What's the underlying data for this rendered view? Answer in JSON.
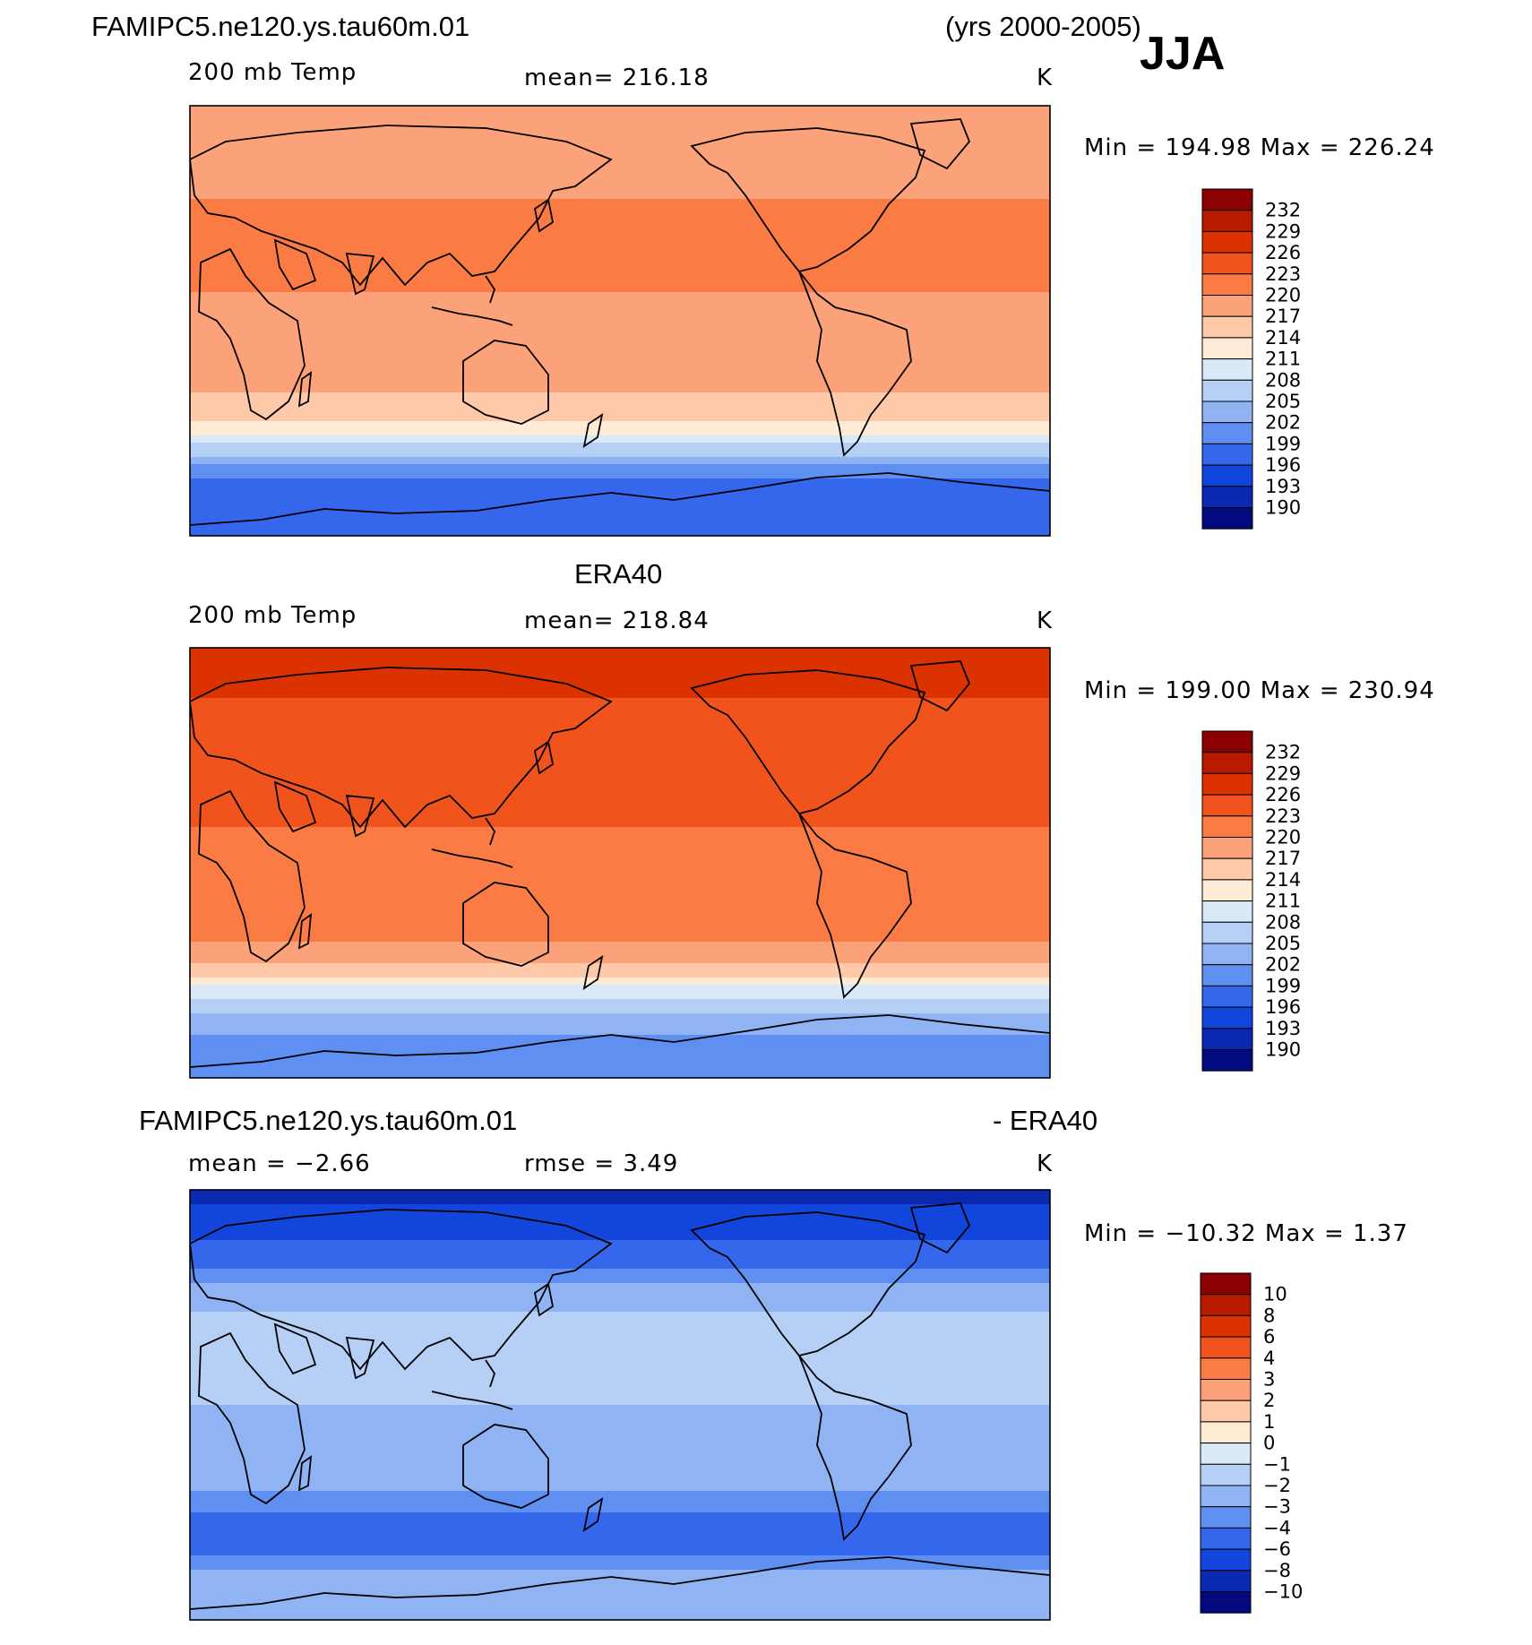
{
  "header": {
    "case_name": "FAMIPC5.ne120.ys.tau60m.01",
    "years": "(yrs 2000-2005)",
    "season": "JJA"
  },
  "panels": [
    {
      "id": "model",
      "title": "",
      "variable": "200 mb Temp",
      "stat_text": "mean=  216.18",
      "units": "K",
      "minmax": "Min  =  194.98  Max  =  226.24"
    },
    {
      "id": "obs",
      "title": "ERA40",
      "variable": "200 mb Temp",
      "stat_text": "mean=  218.84",
      "units": "K",
      "minmax": "Min  =  199.00  Max  =  230.94"
    },
    {
      "id": "diff",
      "title_left": "FAMIPC5.ne120.ys.tau60m.01",
      "title_right": "- ERA40",
      "variable": "mean  =    −2.66",
      "stat_text": "rmse  =      3.49",
      "units": "K",
      "minmax": "Min  =  −10.32  Max  =      1.37"
    }
  ],
  "chart_data": [
    {
      "type": "heatmap",
      "title": "FAMIPC5.ne120.ys.tau60m.01 200 mb Temp (yrs 2000-2005) JJA",
      "units": "K",
      "mean": 216.18,
      "min": 194.98,
      "max": 226.24,
      "colorbar_levels": [
        232,
        229,
        226,
        223,
        220,
        217,
        214,
        211,
        208,
        205,
        202,
        199,
        196,
        193,
        190
      ],
      "colorbar_colors": [
        "#8b0000",
        "#b81a00",
        "#dc3200",
        "#f0541c",
        "#fb7b45",
        "#fca27a",
        "#fdc9a8",
        "#fdebd6",
        "#dae9f8",
        "#b5cff5",
        "#8fb3f3",
        "#5f8ff0",
        "#3467ec",
        "#1145db",
        "#0a28b0",
        "#020a7e"
      ],
      "latitude_profile": [
        {
          "lat": 90,
          "value": 220
        },
        {
          "lat": 60,
          "value": 219
        },
        {
          "lat": 40,
          "value": 221
        },
        {
          "lat": 30,
          "value": 223
        },
        {
          "lat": 0,
          "value": 218
        },
        {
          "lat": -30,
          "value": 217
        },
        {
          "lat": -45,
          "value": 213
        },
        {
          "lat": -55,
          "value": 206
        },
        {
          "lat": -65,
          "value": 199
        },
        {
          "lat": -80,
          "value": 196
        },
        {
          "lat": -90,
          "value": 196
        }
      ]
    },
    {
      "type": "heatmap",
      "title": "ERA40 200 mb Temp",
      "units": "K",
      "mean": 218.84,
      "min": 199.0,
      "max": 230.94,
      "colorbar_levels": [
        232,
        229,
        226,
        223,
        220,
        217,
        214,
        211,
        208,
        205,
        202,
        199,
        196,
        193,
        190
      ],
      "colorbar_colors": [
        "#8b0000",
        "#b81a00",
        "#dc3200",
        "#f0541c",
        "#fb7b45",
        "#fca27a",
        "#fdc9a8",
        "#fdebd6",
        "#dae9f8",
        "#b5cff5",
        "#8fb3f3",
        "#5f8ff0",
        "#3467ec",
        "#1145db",
        "#0a28b0",
        "#020a7e"
      ],
      "latitude_profile": [
        {
          "lat": 90,
          "value": 229
        },
        {
          "lat": 70,
          "value": 226
        },
        {
          "lat": 50,
          "value": 223
        },
        {
          "lat": 30,
          "value": 225
        },
        {
          "lat": 0,
          "value": 221
        },
        {
          "lat": -30,
          "value": 221
        },
        {
          "lat": -45,
          "value": 216
        },
        {
          "lat": -55,
          "value": 209
        },
        {
          "lat": -65,
          "value": 203
        },
        {
          "lat": -80,
          "value": 201
        },
        {
          "lat": -90,
          "value": 201
        }
      ]
    },
    {
      "type": "heatmap",
      "title": "FAMIPC5.ne120.ys.tau60m.01 - ERA40",
      "units": "K",
      "mean": -2.66,
      "rmse": 3.49,
      "min": -10.32,
      "max": 1.37,
      "colorbar_levels": [
        10,
        8,
        6,
        4,
        3,
        2,
        1,
        0,
        -1,
        -2,
        -3,
        -4,
        -6,
        -8,
        -10
      ],
      "colorbar_colors": [
        "#8b0000",
        "#b81a00",
        "#dc3200",
        "#f0541c",
        "#fb7b45",
        "#fca27a",
        "#fdc9a8",
        "#fdebd6",
        "#dae9f8",
        "#b5cff5",
        "#8fb3f3",
        "#5f8ff0",
        "#3467ec",
        "#1145db",
        "#0a28b0",
        "#020a7e"
      ],
      "latitude_profile": [
        {
          "lat": 90,
          "value": -9
        },
        {
          "lat": 70,
          "value": -6
        },
        {
          "lat": 50,
          "value": -3
        },
        {
          "lat": 30,
          "value": -1
        },
        {
          "lat": 0,
          "value": -2
        },
        {
          "lat": -30,
          "value": -2.5
        },
        {
          "lat": -45,
          "value": -4
        },
        {
          "lat": -55,
          "value": -5
        },
        {
          "lat": -70,
          "value": -3
        },
        {
          "lat": -90,
          "value": -2
        }
      ]
    }
  ]
}
